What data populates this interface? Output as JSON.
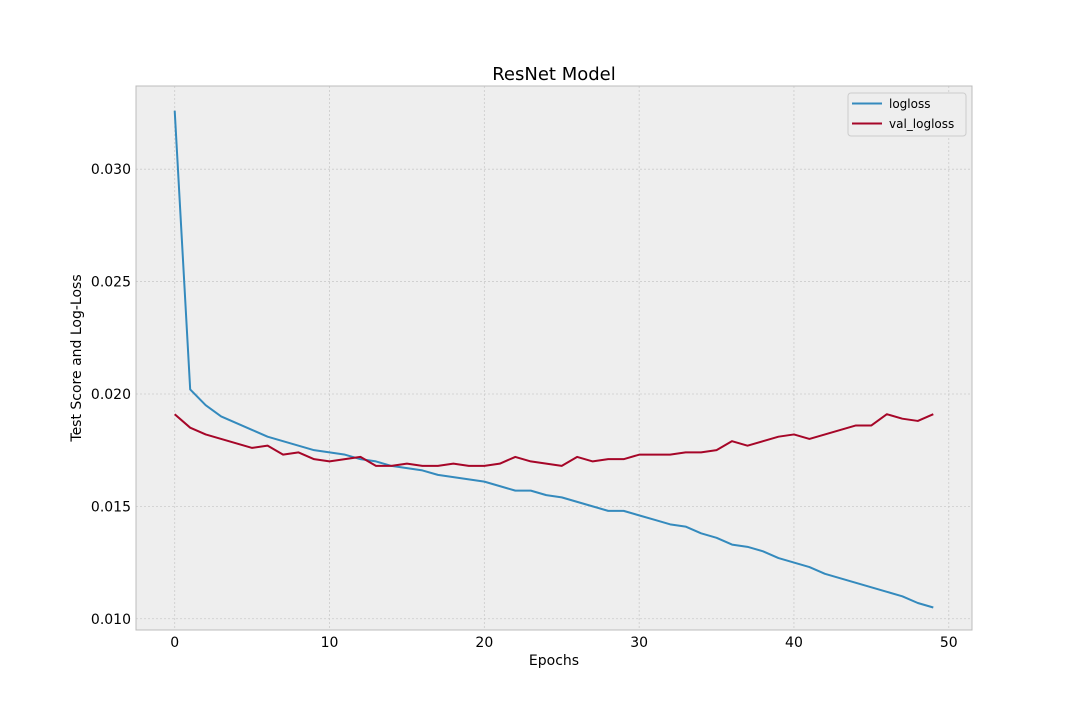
{
  "chart_data": {
    "type": "line",
    "title": "ResNet Model",
    "xlabel": "Epochs",
    "ylabel": "Test Score and Log-Loss",
    "xlim": [
      -2.5,
      51.5
    ],
    "ylim": [
      0.0095,
      0.0337
    ],
    "xticks": [
      0,
      10,
      20,
      30,
      40,
      50
    ],
    "xtick_labels": [
      "0",
      "10",
      "20",
      "30",
      "40",
      "50"
    ],
    "yticks": [
      0.01,
      0.015,
      0.02,
      0.025,
      0.03
    ],
    "ytick_labels": [
      "0.010",
      "0.015",
      "0.020",
      "0.025",
      "0.030"
    ],
    "grid": true,
    "legend": "top-right",
    "x": [
      0,
      1,
      2,
      3,
      4,
      5,
      6,
      7,
      8,
      9,
      10,
      11,
      12,
      13,
      14,
      15,
      16,
      17,
      18,
      19,
      20,
      21,
      22,
      23,
      24,
      25,
      26,
      27,
      28,
      29,
      30,
      31,
      32,
      33,
      34,
      35,
      36,
      37,
      38,
      39,
      40,
      41,
      42,
      43,
      44,
      45,
      46,
      47,
      48,
      49
    ],
    "series": [
      {
        "name": "logloss",
        "color": "#348ABD",
        "values": [
          0.0326,
          0.0202,
          0.0195,
          0.019,
          0.0187,
          0.0184,
          0.0181,
          0.0179,
          0.0177,
          0.0175,
          0.0174,
          0.0173,
          0.0171,
          0.017,
          0.0168,
          0.0167,
          0.0166,
          0.0164,
          0.0163,
          0.0162,
          0.0161,
          0.0159,
          0.0157,
          0.0157,
          0.0155,
          0.0154,
          0.0152,
          0.015,
          0.0148,
          0.0148,
          0.0146,
          0.0144,
          0.0142,
          0.0141,
          0.0138,
          0.0136,
          0.0133,
          0.0132,
          0.013,
          0.0127,
          0.0125,
          0.0123,
          0.012,
          0.0118,
          0.0116,
          0.0114,
          0.0112,
          0.011,
          0.0107,
          0.0105
        ]
      },
      {
        "name": "val_logloss",
        "color": "#A60628",
        "values": [
          0.0191,
          0.0185,
          0.0182,
          0.018,
          0.0178,
          0.0176,
          0.0177,
          0.0173,
          0.0174,
          0.0171,
          0.017,
          0.0171,
          0.0172,
          0.0168,
          0.0168,
          0.0169,
          0.0168,
          0.0168,
          0.0169,
          0.0168,
          0.0168,
          0.0169,
          0.0172,
          0.017,
          0.0169,
          0.0168,
          0.0172,
          0.017,
          0.0171,
          0.0171,
          0.0173,
          0.0173,
          0.0173,
          0.0174,
          0.0174,
          0.0175,
          0.0179,
          0.0177,
          0.0179,
          0.0181,
          0.0182,
          0.018,
          0.0182,
          0.0184,
          0.0186,
          0.0186,
          0.0191,
          0.0189,
          0.0188,
          0.0191
        ]
      }
    ]
  },
  "style": {
    "plot_bg": "#EEEEEE",
    "frame_color": "#BCBCBC",
    "grid_color": "#CBCBCB"
  }
}
